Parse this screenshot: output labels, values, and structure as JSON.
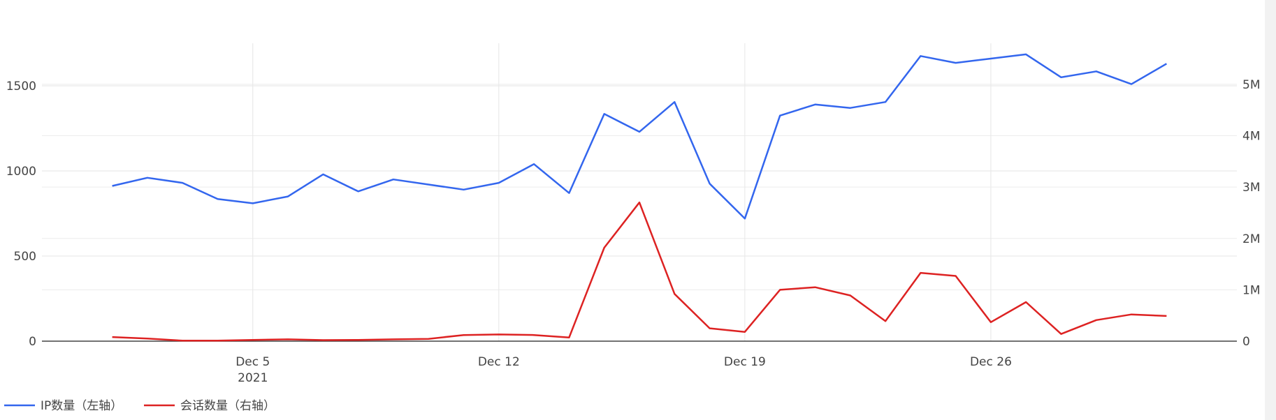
{
  "chart_data": {
    "type": "line",
    "x": [
      "2021-12-01",
      "2021-12-02",
      "2021-12-03",
      "2021-12-04",
      "2021-12-05",
      "2021-12-06",
      "2021-12-07",
      "2021-12-08",
      "2021-12-09",
      "2021-12-10",
      "2021-12-11",
      "2021-12-12",
      "2021-12-13",
      "2021-12-14",
      "2021-12-15",
      "2021-12-16",
      "2021-12-17",
      "2021-12-18",
      "2021-12-19",
      "2021-12-20",
      "2021-12-21",
      "2021-12-22",
      "2021-12-23",
      "2021-12-24",
      "2021-12-25",
      "2021-12-26",
      "2021-12-27",
      "2021-12-28",
      "2021-12-29",
      "2021-12-30",
      "2021-12-31"
    ],
    "x_ticks": [
      {
        "date": "2021-12-05",
        "label": "Dec 5",
        "sublabel": "2021"
      },
      {
        "date": "2021-12-12",
        "label": "Dec 12",
        "sublabel": ""
      },
      {
        "date": "2021-12-19",
        "label": "Dec 19",
        "sublabel": ""
      },
      {
        "date": "2021-12-26",
        "label": "Dec 26",
        "sublabel": ""
      }
    ],
    "xlim": [
      "2021-11-29",
      "2022-01-02"
    ],
    "yaxis_left": {
      "range": [
        0,
        1750
      ],
      "ticks": [
        0,
        500,
        1000,
        1500
      ],
      "tick_labels": [
        "0",
        "500",
        "1000",
        "1500"
      ]
    },
    "yaxis_right": {
      "range": [
        0,
        5800000
      ],
      "ticks": [
        0,
        1000000,
        2000000,
        3000000,
        4000000,
        5000000
      ],
      "tick_labels": [
        "0",
        "1M",
        "2M",
        "3M",
        "4M",
        "5M"
      ]
    },
    "grid": true,
    "legend_position": "bottom-left",
    "series": [
      {
        "name": "IP数量（左轴）",
        "axis": "left",
        "color": "#3366ee",
        "values": [
          912,
          960,
          930,
          835,
          810,
          850,
          980,
          880,
          950,
          920,
          890,
          930,
          1040,
          870,
          1335,
          1230,
          1405,
          925,
          720,
          1325,
          1390,
          1370,
          1405,
          1675,
          1635,
          1660,
          1685,
          1550,
          1585,
          1510,
          1630
        ]
      },
      {
        "name": "会话数量（右轴）",
        "axis": "right",
        "color": "#dd2222",
        "values": [
          80000,
          50000,
          10000,
          10000,
          25000,
          35000,
          20000,
          25000,
          35000,
          45000,
          120000,
          130000,
          120000,
          70000,
          1820000,
          2700000,
          920000,
          250000,
          180000,
          1000000,
          1050000,
          890000,
          390000,
          1330000,
          1270000,
          370000,
          760000,
          140000,
          410000,
          520000,
          490000
        ]
      }
    ]
  }
}
